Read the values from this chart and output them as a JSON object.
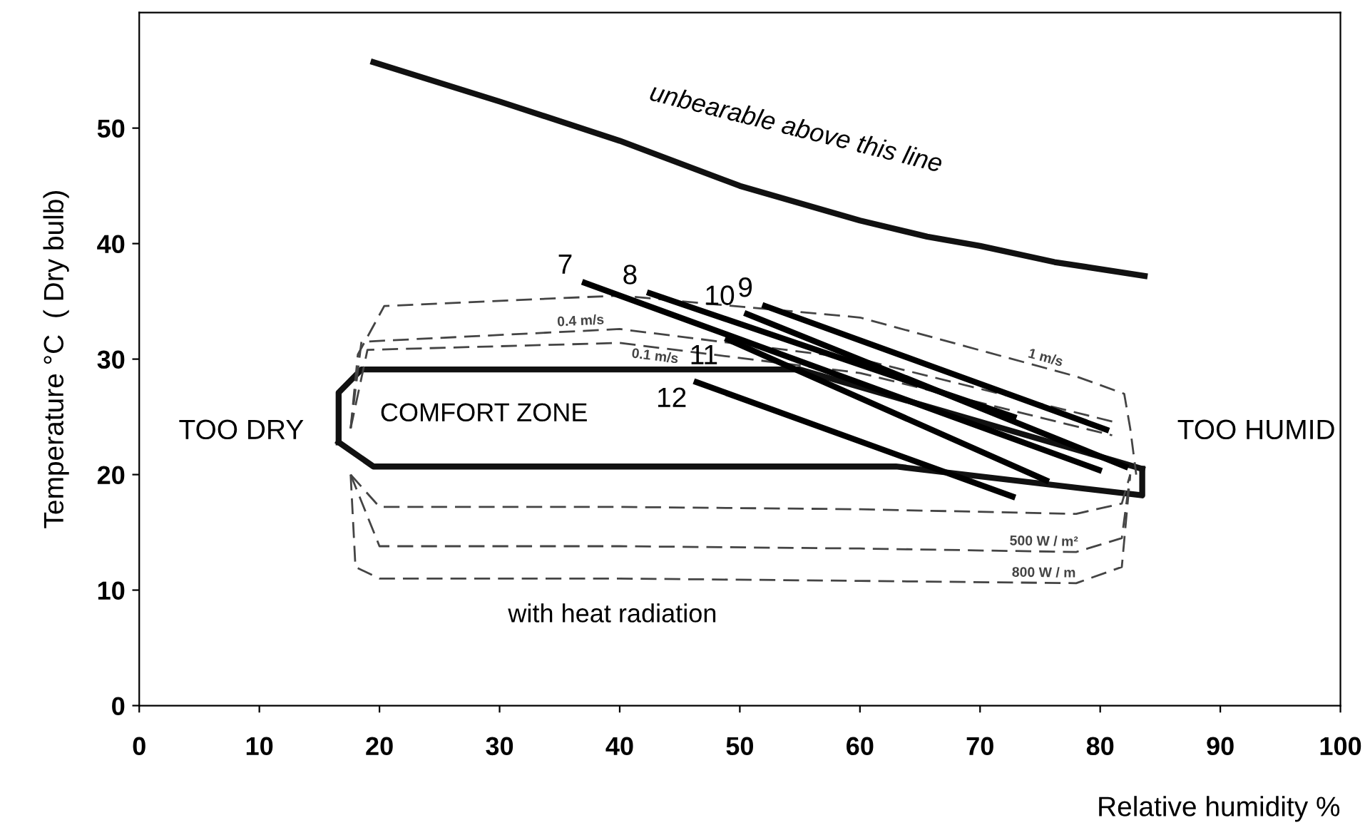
{
  "chart_data": {
    "type": "line",
    "xlabel": "Relative humidity %",
    "ylabel": "Temperature °C  ( Dry bulb)",
    "xlim": [
      0,
      100
    ],
    "ylim": [
      0,
      60
    ],
    "xticks": [
      0,
      10,
      20,
      30,
      40,
      50,
      60,
      70,
      80,
      90,
      100
    ],
    "yticks": [
      0,
      10,
      20,
      30,
      40,
      50
    ],
    "grid": false,
    "legend": false,
    "marker": "none",
    "series": [
      {
        "color": "#111111",
        "line_style": "solid",
        "x": [
          19.5,
          30,
          40,
          50,
          60,
          65.6,
          70,
          76.2,
          83.7
        ],
        "values": [
          55.7,
          52.3,
          48.9,
          45.0,
          42.0,
          40.6,
          39.8,
          38.4,
          37.2
        ]
      },
      {
        "color": "#111111",
        "line_style": "solid",
        "x": [
          16.6,
          16.6,
          18.5,
          55,
          83.5
        ],
        "values": [
          22.8,
          27.1,
          29.1,
          29.1,
          20.5
        ]
      },
      {
        "color": "#111111",
        "line_style": "solid",
        "x": [
          16.6,
          19.5,
          63,
          83.5,
          83.5
        ],
        "values": [
          22.8,
          20.7,
          20.7,
          18.2,
          20.5
        ]
      },
      {
        "name": "1 m/s",
        "color": "#444444",
        "line_style": "dashed",
        "x": [
          17.6,
          18.2,
          20.4,
          40,
          60,
          78,
          82,
          82.5,
          83
        ],
        "values": [
          24,
          30.4,
          34.6,
          35.5,
          33.6,
          28.5,
          27,
          24,
          20
        ]
      },
      {
        "name": "0.4 m/s",
        "color": "#444444",
        "line_style": "dashed",
        "x": [
          17.6,
          18.5,
          40,
          60,
          81
        ],
        "values": [
          24,
          31.5,
          32.6,
          30,
          24.6
        ]
      },
      {
        "name": "0.1 m/s",
        "color": "#444444",
        "line_style": "dashed",
        "x": [
          17.6,
          19,
          40,
          60,
          81
        ],
        "values": [
          24,
          30.8,
          31.4,
          28.8,
          23.4
        ]
      },
      {
        "color": "#444444",
        "line_style": "dashed",
        "x": [
          17.6,
          20,
          40,
          60,
          78,
          81.8,
          82.5
        ],
        "values": [
          20,
          17.2,
          17.2,
          17.0,
          16.6,
          17.5,
          20
        ]
      },
      {
        "name": "500 W / m²",
        "color": "#444444",
        "line_style": "dashed",
        "x": [
          17.6,
          20,
          40,
          60,
          78,
          81.8,
          82.5
        ],
        "values": [
          20,
          13.8,
          13.8,
          13.6,
          13.3,
          14.5,
          20
        ]
      },
      {
        "name": "800 W / m",
        "color": "#444444",
        "line_style": "dashed",
        "x": [
          17.6,
          18,
          20,
          40,
          60,
          78,
          81.8,
          82.5
        ],
        "values": [
          20,
          12,
          11.0,
          11.0,
          10.8,
          10.6,
          12,
          20
        ]
      },
      {
        "name": "7",
        "color": "#000000",
        "line_style": "solid",
        "x": [
          37.1,
          79.9
        ],
        "values": [
          36.6,
          20.4
        ]
      },
      {
        "name": "8",
        "color": "#000000",
        "line_style": "solid",
        "x": [
          42.5,
          72.8
        ],
        "values": [
          35.7,
          25.0
        ]
      },
      {
        "name": "9",
        "color": "#000000",
        "line_style": "solid",
        "x": [
          52.1,
          80.5
        ],
        "values": [
          34.6,
          23.9
        ]
      },
      {
        "name": "10",
        "color": "#000000",
        "line_style": "solid",
        "x": [
          50.6,
          82.1
        ],
        "values": [
          33.9,
          20.7
        ]
      },
      {
        "name": "11",
        "color": "#000000",
        "line_style": "solid",
        "x": [
          49.0,
          75.5
        ],
        "values": [
          31.7,
          19.5
        ]
      },
      {
        "name": "12",
        "color": "#000000",
        "line_style": "solid",
        "x": [
          46.4,
          72.7
        ],
        "values": [
          28.0,
          18.1
        ]
      }
    ],
    "annotations": [
      {
        "text": "unbearable above this line",
        "x": 54,
        "y": 44.0
      },
      "TOO DRY",
      "TOO HUMID",
      "COMFORT ZONE",
      "with heat radiation"
    ]
  }
}
